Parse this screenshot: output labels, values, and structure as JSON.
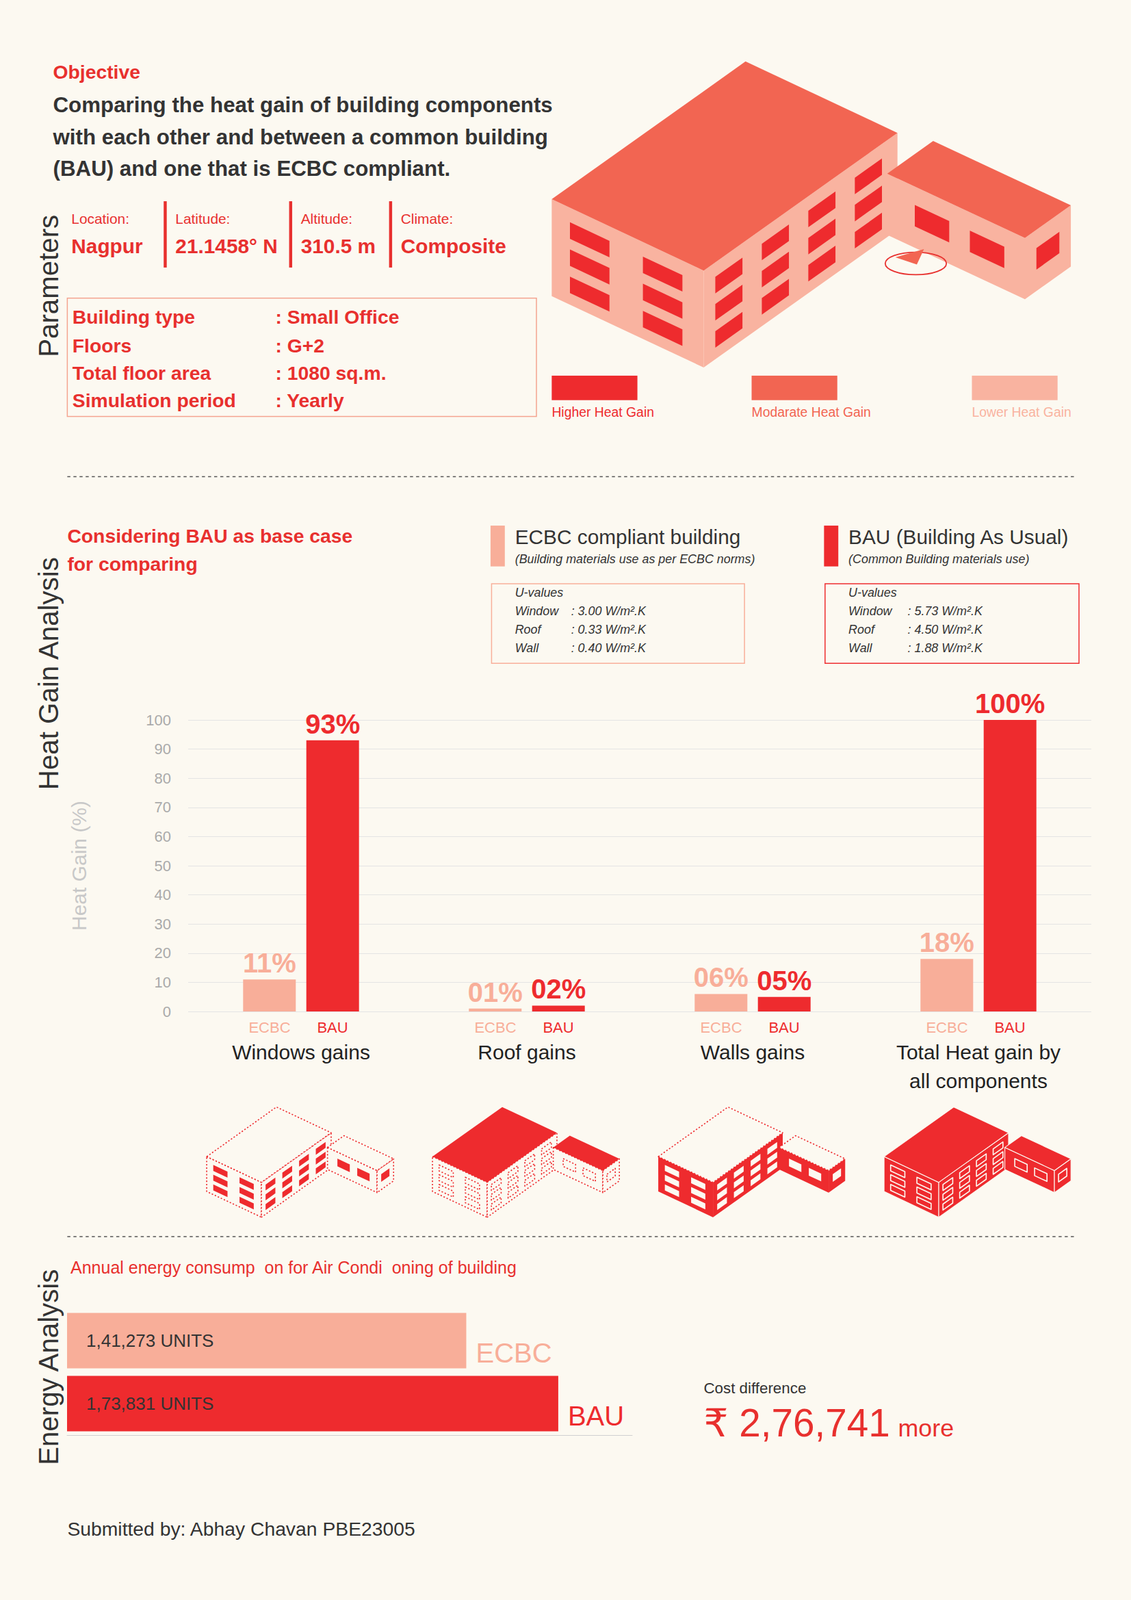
{
  "objective": {
    "label": "Objective",
    "lines": [
      "Comparing the heat gain of building components",
      "with each other and between a common building",
      "(BAU) and one that is ECBC compliant."
    ]
  },
  "parameters": {
    "title": "Parameters",
    "site": [
      {
        "label": "Location:",
        "value": "Nagpur"
      },
      {
        "label": "Latitude:",
        "value": "21.1458° N"
      },
      {
        "label": "Altitude:",
        "value": "310.5 m"
      },
      {
        "label": "Climate:",
        "value": "Composite"
      }
    ],
    "details": [
      {
        "label": "Building type",
        "value": ": Small Office"
      },
      {
        "label": "Floors",
        "value": ": G+2"
      },
      {
        "label": "Total floor area",
        "value": ": 1080 sq.m."
      },
      {
        "label": "Simulation period",
        "value": ": Yearly"
      }
    ]
  },
  "heat_legend": [
    {
      "label": "Higher Heat Gain",
      "color": "#ee2b2e"
    },
    {
      "label": "Modarate Heat Gain",
      "color": "#f26552"
    },
    {
      "label": "Lower Heat Gain",
      "color": "#f9b3a0"
    }
  ],
  "sections": {
    "heat_gain": "Heat Gain Analysis",
    "energy": "Energy Analysis"
  },
  "chart_data": [
    {
      "type": "bar",
      "title": [
        "Considering BAU as base case",
        "for comparing"
      ],
      "y_label": "Heat Gain (%)",
      "categories": [
        "Windows gains",
        "Roof gains",
        "Walls gains",
        "Total Heat gain by all components"
      ],
      "series": [
        {
          "name": "ECBC",
          "legend_title": "ECBC compliant building",
          "legend_note": "(Building materials use as per ECBC norms)",
          "u_values": {
            "title": "U-values",
            "rows": [
              [
                "Window",
                ": 3.00 W/m².K"
              ],
              [
                "Roof",
                ": 0.33 W/m².K"
              ],
              [
                "Wall",
                ": 0.40 W/m².K"
              ]
            ]
          },
          "color": "#f8ae99",
          "values": [
            11,
            1,
            6,
            18
          ],
          "value_labels": [
            "11%",
            "01%",
            "06%",
            "18%"
          ]
        },
        {
          "name": "BAU",
          "legend_title": "BAU (Building As Usual)",
          "legend_note": "(Common Building materials use)",
          "u_values": {
            "title": "U-values",
            "rows": [
              [
                "Window",
                ": 5.73 W/m².K"
              ],
              [
                "Roof",
                ": 4.50 W/m².K"
              ],
              [
                "Wall",
                ": 1.88 W/m².K"
              ]
            ]
          },
          "color": "#ee2b2e",
          "values": [
            93,
            2,
            5,
            100
          ],
          "value_labels": [
            "93%",
            "02%",
            "05%",
            "100%"
          ]
        }
      ],
      "ylim": [
        0,
        100
      ],
      "yticks": [
        0,
        10,
        20,
        30,
        40,
        50,
        60,
        70,
        80,
        90,
        100
      ],
      "grid": true,
      "data_labels": true
    },
    {
      "type": "bar",
      "orientation": "horizontal",
      "title": "Annual energy consump  on for Air Condi  oning of building",
      "categories": [
        "ECBC",
        "BAU"
      ],
      "values": [
        141273,
        173831
      ],
      "value_labels": [
        "1,41,273 UNITS",
        "1,73,831 UNITS"
      ],
      "colors": [
        "#f8ae99",
        "#ee2b2e"
      ],
      "xlim": [
        0,
        200000
      ],
      "tick_labels": false,
      "grid": false,
      "data_labels": true,
      "cost_difference": {
        "label": "Cost difference",
        "text": "₹ 2,76,741",
        "suffix": "more"
      }
    }
  ],
  "footer": "Submitted by: Abhay Chavan PBE23005"
}
